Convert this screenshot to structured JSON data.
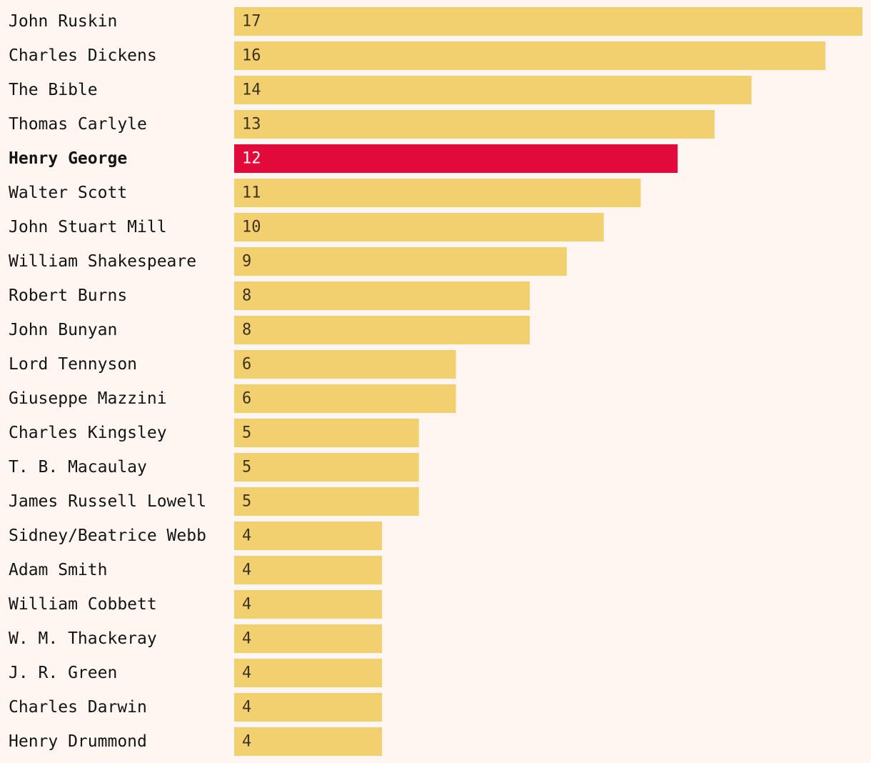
{
  "chart_data": {
    "type": "bar",
    "orientation": "horizontal",
    "title": "",
    "xlabel": "",
    "ylabel": "",
    "xlim": [
      0,
      17
    ],
    "grid": false,
    "categories": [
      "John Ruskin",
      "Charles Dickens",
      "The Bible",
      "Thomas Carlyle",
      "Henry George",
      "Walter Scott",
      "John Stuart Mill",
      "William Shakespeare",
      "Robert Burns",
      "John Bunyan",
      "Lord Tennyson",
      "Giuseppe Mazzini",
      "Charles Kingsley",
      "T. B. Macaulay",
      "James Russell Lowell",
      "Sidney/Beatrice Webb",
      "Adam Smith",
      "William Cobbett",
      "W. M. Thackeray",
      "J. R. Green",
      "Charles Darwin",
      "Henry Drummond"
    ],
    "values": [
      17,
      16,
      14,
      13,
      12,
      11,
      10,
      9,
      8,
      8,
      6,
      6,
      5,
      5,
      5,
      4,
      4,
      4,
      4,
      4,
      4,
      4
    ],
    "highlight": "Henry George",
    "colors": {
      "bar": "#f2d06f",
      "highlight": "#e20a3a",
      "value_text": "#3c3320",
      "highlight_value_text": "#ffffff",
      "label_text": "#141414",
      "background": "#fff6f2"
    }
  }
}
